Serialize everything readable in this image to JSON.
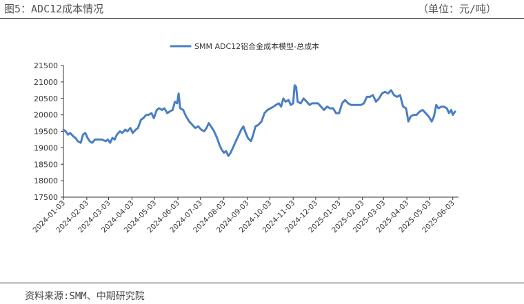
{
  "header": {
    "figure_title": "图5：ADC12成本情况",
    "unit": "（单位：元/吨）"
  },
  "footer": {
    "source": "资料来源:SMM、中期研究院"
  },
  "colors": {
    "series": "#4a7ec2",
    "axis": "#333333"
  },
  "chart_data": {
    "type": "line",
    "title": "",
    "xlabel": "",
    "ylabel": "",
    "legend": {
      "position": "top-center"
    },
    "grid": false,
    "ylim": [
      17500,
      21500
    ],
    "yticks": [
      17500,
      18000,
      18500,
      19000,
      19500,
      20000,
      20500,
      21000,
      21500
    ],
    "xlim": [
      "2024-01-03",
      "2025-06-06"
    ],
    "xticks": [
      "2024-01-03",
      "2024-02-03",
      "2024-03-03",
      "2024-04-03",
      "2024-05-03",
      "2024-06-03",
      "2024-07-03",
      "2024-08-03",
      "2024-09-03",
      "2024-10-03",
      "2024-11-03",
      "2024-12-03",
      "2025-01-03",
      "2025-02-03",
      "2025-03-03",
      "2025-04-03",
      "2025-05-03",
      "2025-06-03"
    ],
    "series": [
      {
        "name": "SMM ADC12铝合金成本模型-总成本",
        "points": [
          [
            "2024-01-03",
            19550
          ],
          [
            "2024-01-06",
            19500
          ],
          [
            "2024-01-09",
            19400
          ],
          [
            "2024-01-12",
            19450
          ],
          [
            "2024-01-16",
            19350
          ],
          [
            "2024-01-19",
            19300
          ],
          [
            "2024-01-22",
            19200
          ],
          [
            "2024-01-26",
            19150
          ],
          [
            "2024-01-29",
            19400
          ],
          [
            "2024-02-01",
            19450
          ],
          [
            "2024-02-04",
            19300
          ],
          [
            "2024-02-07",
            19200
          ],
          [
            "2024-02-10",
            19150
          ],
          [
            "2024-02-14",
            19250
          ],
          [
            "2024-02-19",
            19250
          ],
          [
            "2024-02-23",
            19250
          ],
          [
            "2024-02-28",
            19200
          ],
          [
            "2024-03-02",
            19250
          ],
          [
            "2024-03-05",
            19150
          ],
          [
            "2024-03-08",
            19300
          ],
          [
            "2024-03-11",
            19250
          ],
          [
            "2024-03-14",
            19400
          ],
          [
            "2024-03-18",
            19500
          ],
          [
            "2024-03-21",
            19450
          ],
          [
            "2024-03-25",
            19550
          ],
          [
            "2024-03-28",
            19500
          ],
          [
            "2024-04-01",
            19600
          ],
          [
            "2024-04-04",
            19450
          ],
          [
            "2024-04-08",
            19550
          ],
          [
            "2024-04-11",
            19600
          ],
          [
            "2024-04-15",
            19850
          ],
          [
            "2024-04-18",
            19900
          ],
          [
            "2024-04-22",
            20000
          ],
          [
            "2024-04-25",
            20000
          ],
          [
            "2024-04-29",
            20050
          ],
          [
            "2024-05-02",
            19900
          ],
          [
            "2024-05-06",
            20150
          ],
          [
            "2024-05-09",
            20200
          ],
          [
            "2024-05-13",
            20150
          ],
          [
            "2024-05-16",
            20200
          ],
          [
            "2024-05-20",
            20050
          ],
          [
            "2024-05-23",
            20100
          ],
          [
            "2024-05-27",
            20150
          ],
          [
            "2024-05-30",
            20400
          ],
          [
            "2024-06-02",
            20350
          ],
          [
            "2024-06-04",
            20650
          ],
          [
            "2024-06-06",
            20200
          ],
          [
            "2024-06-10",
            20150
          ],
          [
            "2024-06-14",
            19950
          ],
          [
            "2024-06-18",
            19800
          ],
          [
            "2024-06-22",
            19700
          ],
          [
            "2024-06-26",
            19600
          ],
          [
            "2024-06-30",
            19650
          ],
          [
            "2024-07-04",
            19550
          ],
          [
            "2024-07-08",
            19500
          ],
          [
            "2024-07-11",
            19600
          ],
          [
            "2024-07-14",
            19750
          ],
          [
            "2024-07-17",
            19650
          ],
          [
            "2024-07-21",
            19500
          ],
          [
            "2024-07-25",
            19300
          ],
          [
            "2024-07-28",
            19100
          ],
          [
            "2024-07-31",
            18950
          ],
          [
            "2024-08-03",
            18850
          ],
          [
            "2024-08-06",
            18900
          ],
          [
            "2024-08-09",
            18750
          ],
          [
            "2024-08-12",
            18850
          ],
          [
            "2024-08-15",
            19000
          ],
          [
            "2024-08-19",
            19200
          ],
          [
            "2024-08-22",
            19350
          ],
          [
            "2024-08-26",
            19550
          ],
          [
            "2024-08-29",
            19650
          ],
          [
            "2024-09-01",
            19450
          ],
          [
            "2024-09-04",
            19300
          ],
          [
            "2024-09-08",
            19200
          ],
          [
            "2024-09-11",
            19400
          ],
          [
            "2024-09-14",
            19650
          ],
          [
            "2024-09-18",
            19700
          ],
          [
            "2024-09-22",
            19800
          ],
          [
            "2024-09-26",
            20050
          ],
          [
            "2024-09-30",
            20150
          ],
          [
            "2024-10-04",
            20200
          ],
          [
            "2024-10-08",
            20250
          ],
          [
            "2024-10-11",
            20300
          ],
          [
            "2024-10-15",
            20350
          ],
          [
            "2024-10-18",
            20250
          ],
          [
            "2024-10-21",
            20500
          ],
          [
            "2024-10-24",
            20400
          ],
          [
            "2024-10-28",
            20450
          ],
          [
            "2024-10-31",
            20300
          ],
          [
            "2024-11-03",
            20350
          ],
          [
            "2024-11-05",
            20900
          ],
          [
            "2024-11-07",
            20850
          ],
          [
            "2024-11-09",
            20400
          ],
          [
            "2024-11-13",
            20350
          ],
          [
            "2024-11-17",
            20500
          ],
          [
            "2024-11-21",
            20400
          ],
          [
            "2024-11-25",
            20300
          ],
          [
            "2024-11-28",
            20350
          ],
          [
            "2024-12-02",
            20350
          ],
          [
            "2024-12-06",
            20350
          ],
          [
            "2024-12-10",
            20250
          ],
          [
            "2024-12-14",
            20150
          ],
          [
            "2024-12-18",
            20250
          ],
          [
            "2024-12-22",
            20200
          ],
          [
            "2024-12-26",
            20200
          ],
          [
            "2024-12-30",
            20050
          ],
          [
            "2025-01-03",
            20050
          ],
          [
            "2025-01-07",
            20350
          ],
          [
            "2025-01-11",
            20450
          ],
          [
            "2025-01-15",
            20350
          ],
          [
            "2025-01-19",
            20300
          ],
          [
            "2025-01-25",
            20300
          ],
          [
            "2025-02-01",
            20300
          ],
          [
            "2025-02-05",
            20350
          ],
          [
            "2025-02-09",
            20550
          ],
          [
            "2025-02-13",
            20550
          ],
          [
            "2025-02-17",
            20600
          ],
          [
            "2025-02-21",
            20400
          ],
          [
            "2025-02-25",
            20500
          ],
          [
            "2025-03-01",
            20650
          ],
          [
            "2025-03-05",
            20700
          ],
          [
            "2025-03-09",
            20650
          ],
          [
            "2025-03-13",
            20750
          ],
          [
            "2025-03-17",
            20600
          ],
          [
            "2025-03-21",
            20550
          ],
          [
            "2025-03-25",
            20600
          ],
          [
            "2025-03-29",
            20250
          ],
          [
            "2025-04-02",
            20200
          ],
          [
            "2025-04-05",
            19800
          ],
          [
            "2025-04-08",
            19950
          ],
          [
            "2025-04-12",
            20000
          ],
          [
            "2025-04-16",
            20000
          ],
          [
            "2025-04-20",
            20100
          ],
          [
            "2025-04-24",
            20150
          ],
          [
            "2025-04-28",
            20050
          ],
          [
            "2025-05-02",
            19950
          ],
          [
            "2025-05-06",
            19800
          ],
          [
            "2025-05-09",
            19950
          ],
          [
            "2025-05-12",
            20300
          ],
          [
            "2025-05-15",
            20200
          ],
          [
            "2025-05-19",
            20250
          ],
          [
            "2025-05-22",
            20250
          ],
          [
            "2025-05-26",
            20200
          ],
          [
            "2025-05-29",
            20050
          ],
          [
            "2025-06-01",
            20150
          ],
          [
            "2025-06-03",
            20000
          ],
          [
            "2025-06-06",
            20100
          ]
        ]
      }
    ]
  }
}
